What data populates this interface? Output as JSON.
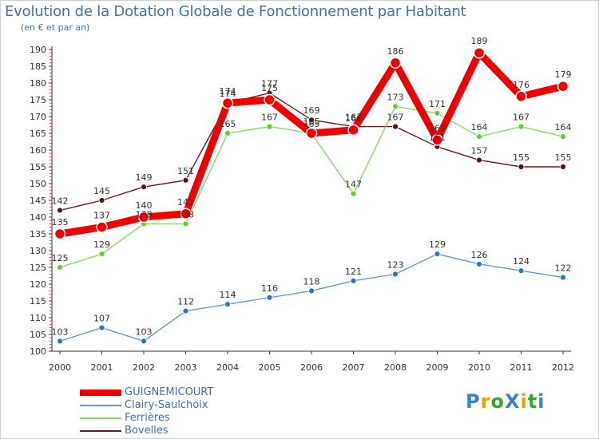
{
  "chart_data": {
    "type": "line",
    "title": "Evolution de la Dotation Globale de Fonctionnement par Habitant",
    "subtitle": "(en € et par an)",
    "xlabel": "",
    "ylabel": "",
    "categories": [
      "2000",
      "2001",
      "2002",
      "2003",
      "2004",
      "2005",
      "2006",
      "2007",
      "2008",
      "2009",
      "2010",
      "2011",
      "2012"
    ],
    "ylim": [
      100,
      190
    ],
    "yticks": [
      100,
      105,
      110,
      115,
      120,
      125,
      130,
      135,
      140,
      145,
      150,
      155,
      160,
      165,
      170,
      175,
      180,
      185,
      190
    ],
    "grid": false,
    "legend_position": "bottom-left",
    "series": [
      {
        "name": "Bovelles",
        "color": "#6b1a1a",
        "fill": "#5a1414",
        "values": [
          142,
          145,
          149,
          151,
          174,
          177,
          169,
          167,
          167,
          161,
          157,
          155,
          155
        ]
      },
      {
        "name": "Ferrières",
        "color": "#88d868",
        "fill": "#66cc33",
        "values": [
          125,
          129,
          138,
          138,
          165,
          167,
          165,
          147,
          173,
          171,
          164,
          167,
          164
        ]
      },
      {
        "name": "Clairy-Saulchoix",
        "color": "#6699cc",
        "fill": "#3377bb",
        "values": [
          103,
          107,
          103,
          112,
          114,
          116,
          118,
          121,
          123,
          129,
          126,
          124,
          122
        ]
      },
      {
        "name": "GUIGNEMICOURT",
        "color": "#ee0000",
        "fill": "#ee0000",
        "values": [
          135,
          137,
          140,
          141,
          174,
          175,
          165,
          166,
          186,
          163,
          189,
          176,
          179
        ]
      }
    ],
    "legend_order": [
      "GUIGNEMICOURT",
      "Clairy-Saulchoix",
      "Ferrières",
      "Bovelles"
    ]
  },
  "logo": {
    "text": "ProXiti",
    "colors": [
      "#3a7fd5",
      "#ff9900",
      "#33aa33",
      "#3a7fd5",
      "#ff9900",
      "#33aa33",
      "#3a7fd5"
    ]
  }
}
